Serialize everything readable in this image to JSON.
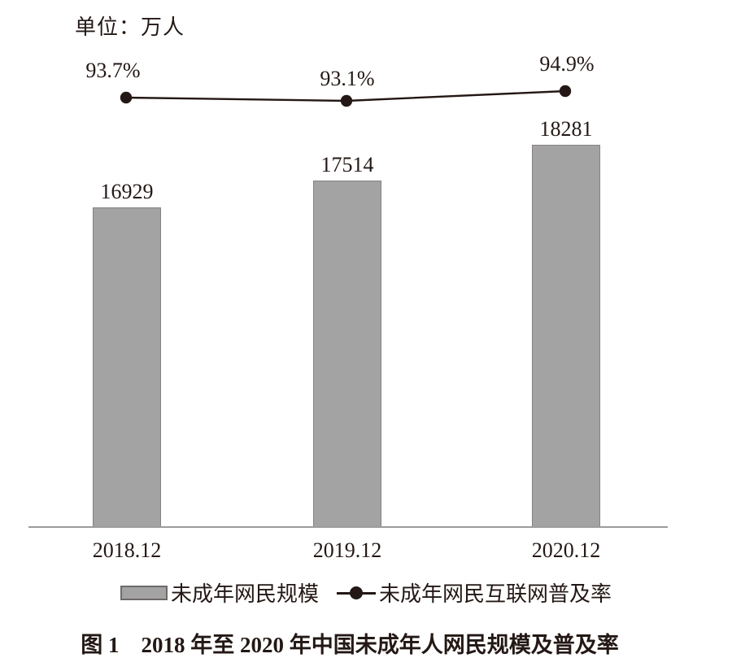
{
  "unit_label": "单位：万人",
  "caption": "图 1　2018 年至 2020 年中国未成年人网民规模及普及率",
  "legend": {
    "bar_label": "未成年网民规模",
    "line_label": "未成年网民互联网普及率"
  },
  "colors": {
    "bar_fill": "#a3a3a3",
    "bar_border": "#868280",
    "line": "#231815",
    "axis": "#9c9c9c",
    "text": "#231815"
  },
  "chart_data": {
    "type": "bar",
    "subtype": "bar-with-line-overlay",
    "title": "图 1　2018 年至 2020 年中国未成年人网民规模及普及率",
    "categories": [
      "2018.12",
      "2019.12",
      "2020.12"
    ],
    "series": [
      {
        "name": "未成年网民规模",
        "type": "bar",
        "unit": "万人",
        "values": [
          16929,
          17514,
          18281
        ],
        "value_labels": [
          "16929",
          "17514",
          "18281"
        ],
        "color": "#a3a3a3"
      },
      {
        "name": "未成年网民互联网普及率",
        "type": "line",
        "unit": "%",
        "values": [
          93.7,
          93.1,
          94.9
        ],
        "value_labels": [
          "93.7%",
          "93.1%",
          "94.9%"
        ],
        "color": "#231815"
      }
    ],
    "ylim_bar_implied": [
      10000,
      18700
    ],
    "ylim_line_implied": [
      92,
      96
    ],
    "grid": false,
    "legend_position": "bottom"
  }
}
